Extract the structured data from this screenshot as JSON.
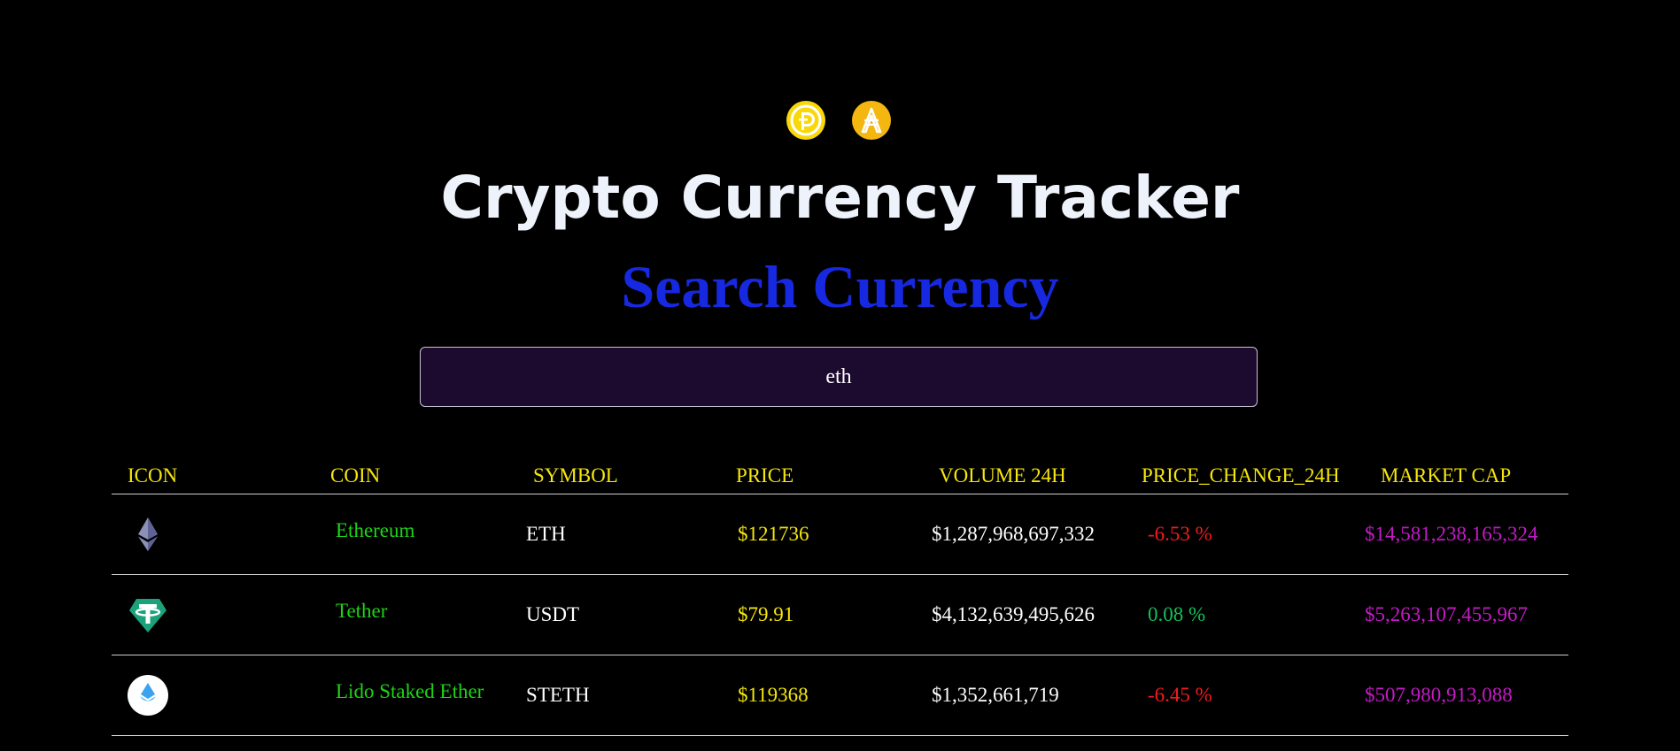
{
  "header": {
    "logos": [
      "dogecoin-like-icon",
      "cardano-like-icon"
    ],
    "title": "Crypto Currency Tracker",
    "subtitle": "Search Currency"
  },
  "search": {
    "value": "eth",
    "placeholder": ""
  },
  "table": {
    "columns": [
      "ICON",
      "COIN",
      "SYMBOL",
      "PRICE",
      "VOLUME 24H",
      "PRICE_CHANGE_24H",
      "MARKET CAP"
    ],
    "rows": [
      {
        "icon": "ethereum-icon",
        "name": "Ethereum",
        "symbol": "ETH",
        "price": "$121736",
        "volume": "$1,287,968,697,332",
        "change": "-6.53 %",
        "change_color": "#f21c1c",
        "market_cap": "$14,581,238,165,324"
      },
      {
        "icon": "tether-icon",
        "name": "Tether",
        "symbol": "USDT",
        "price": "$79.91",
        "volume": "$4,132,639,495,626",
        "change": "0.08 %",
        "change_color": "#14c15c",
        "market_cap": "$5,263,107,455,967"
      },
      {
        "icon": "lido-staked-ether-icon",
        "name": "Lido Staked Ether",
        "symbol": "STETH",
        "price": "$119368",
        "volume": "$1,352,661,719",
        "change": "-6.45 %",
        "change_color": "#f21c1c",
        "market_cap": "$507,980,913,088"
      }
    ]
  },
  "colors": {
    "background": "#000000",
    "title": "#eef3fb",
    "subtitle": "#1729e0",
    "header_text": "#f5e60c",
    "coin_name": "#1ed317",
    "price": "#f5e60c",
    "market_cap": "#c51ac7",
    "negative": "#f21c1c",
    "positive": "#14c15c",
    "search_bg": "#1d0b2f"
  }
}
